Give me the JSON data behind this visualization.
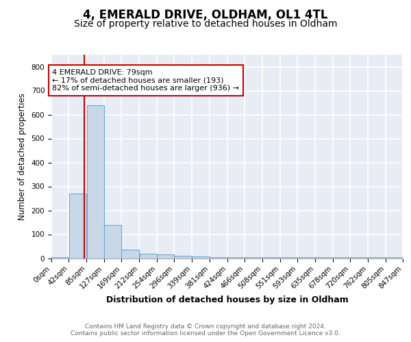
{
  "title1": "4, EMERALD DRIVE, OLDHAM, OL1 4TL",
  "title2": "Size of property relative to detached houses in Oldham",
  "xlabel": "Distribution of detached houses by size in Oldham",
  "ylabel": "Number of detached properties",
  "bar_color": "#c8d8e8",
  "bar_edge_color": "#6aaad4",
  "background_color": "#e8edf5",
  "bin_edges": [
    0,
    42,
    85,
    127,
    169,
    212,
    254,
    296,
    339,
    381,
    424,
    466,
    508,
    551,
    593,
    635,
    678,
    720,
    762,
    805,
    847
  ],
  "bin_labels": [
    "0sqm",
    "42sqm",
    "85sqm",
    "127sqm",
    "169sqm",
    "212sqm",
    "254sqm",
    "296sqm",
    "339sqm",
    "381sqm",
    "424sqm",
    "466sqm",
    "508sqm",
    "551sqm",
    "593sqm",
    "635sqm",
    "678sqm",
    "720sqm",
    "762sqm",
    "805sqm",
    "847sqm"
  ],
  "bar_heights": [
    5,
    270,
    640,
    140,
    35,
    20,
    15,
    10,
    8,
    5,
    5,
    5,
    5,
    5,
    3,
    3,
    3,
    3,
    3,
    3
  ],
  "property_size": 79,
  "vline_color": "#cc0000",
  "annotation_line1": "4 EMERALD DRIVE: 79sqm",
  "annotation_line2": "← 17% of detached houses are smaller (193)",
  "annotation_line3": "82% of semi-detached houses are larger (936) →",
  "annotation_box_color": "white",
  "annotation_box_edge": "#cc0000",
  "ylim": [
    0,
    850
  ],
  "yticks": [
    0,
    100,
    200,
    300,
    400,
    500,
    600,
    700,
    800
  ],
  "footer_line1": "Contains HM Land Registry data © Crown copyright and database right 2024.",
  "footer_line2": "Contains public sector information licensed under the Open Government Licence v3.0.",
  "title1_fontsize": 12,
  "title2_fontsize": 10,
  "xlabel_fontsize": 9,
  "ylabel_fontsize": 8.5,
  "tick_fontsize": 7.5,
  "annotation_fontsize": 8,
  "footer_fontsize": 6.5
}
